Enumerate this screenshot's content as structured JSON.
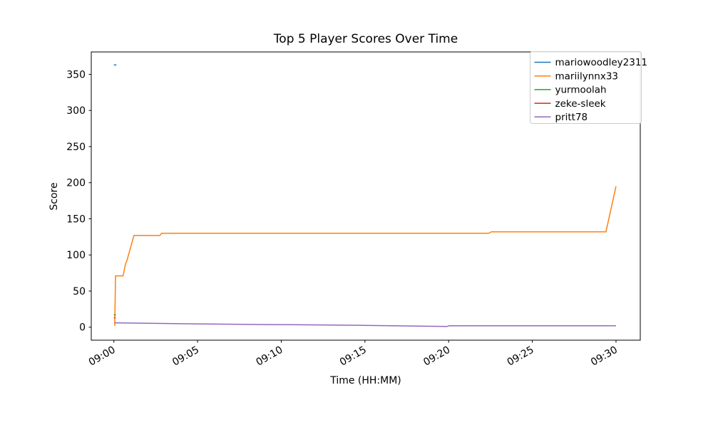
{
  "chart_data": {
    "type": "line",
    "title": "Top 5 Player Scores Over Time",
    "xlabel": "Time (HH:MM)",
    "ylabel": "Score",
    "grid": false,
    "legend_position": "upper right",
    "xlim": [
      -1.35,
      31.45
    ],
    "ylim": [
      -18,
      381
    ],
    "x_ticks": [
      {
        "v": 0,
        "label": "09:00"
      },
      {
        "v": 5,
        "label": "09:05"
      },
      {
        "v": 10,
        "label": "09:10"
      },
      {
        "v": 15,
        "label": "09:15"
      },
      {
        "v": 20,
        "label": "09:20"
      },
      {
        "v": 25,
        "label": "09:25"
      },
      {
        "v": 30,
        "label": "09:30"
      }
    ],
    "y_ticks": [
      {
        "v": 0,
        "label": "0"
      },
      {
        "v": 50,
        "label": "50"
      },
      {
        "v": 100,
        "label": "100"
      },
      {
        "v": 150,
        "label": "150"
      },
      {
        "v": 200,
        "label": "200"
      },
      {
        "v": 250,
        "label": "250"
      },
      {
        "v": 300,
        "label": "300"
      },
      {
        "v": 350,
        "label": "350"
      }
    ],
    "series": [
      {
        "name": "mariowoodley2311",
        "color": "#1f77b4",
        "points": [
          [
            0,
            363
          ],
          [
            0.15,
            363
          ]
        ]
      },
      {
        "name": "mariilynnx33",
        "color": "#ff7f0e",
        "points": [
          [
            0.05,
            2
          ],
          [
            0.1,
            71
          ],
          [
            0.55,
            71
          ],
          [
            0.7,
            88
          ],
          [
            0.78,
            92
          ],
          [
            1.2,
            127
          ],
          [
            2.75,
            127
          ],
          [
            2.85,
            130
          ],
          [
            22.4,
            130
          ],
          [
            22.55,
            132
          ],
          [
            29.4,
            132
          ],
          [
            30,
            195
          ]
        ]
      },
      {
        "name": "yurmoolah",
        "color": "#2ca02c",
        "points": [
          [
            0,
            17
          ],
          [
            0.12,
            17
          ]
        ]
      },
      {
        "name": "zeke-sleek",
        "color": "#d62728",
        "points": [
          [
            0,
            13
          ],
          [
            0.1,
            13
          ]
        ]
      },
      {
        "name": "pritt78",
        "color": "#9467bd",
        "points": [
          [
            0.05,
            6
          ],
          [
            5,
            4.5
          ],
          [
            10,
            3.5
          ],
          [
            15,
            2.5
          ],
          [
            19.9,
            1
          ],
          [
            20.05,
            2
          ],
          [
            30,
            2
          ]
        ]
      }
    ]
  }
}
